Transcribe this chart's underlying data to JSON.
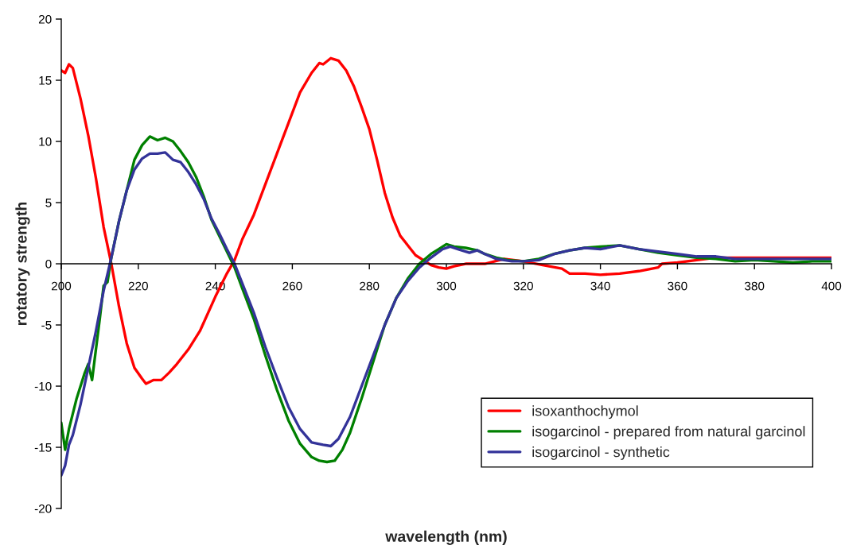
{
  "chart_data": {
    "type": "line",
    "xlabel": "wavelength (nm)",
    "ylabel": "rotatory strength",
    "xlim": [
      200,
      400
    ],
    "xticks": [
      200,
      220,
      240,
      260,
      280,
      300,
      320,
      340,
      360,
      380,
      400
    ],
    "ylim": [
      -20,
      20
    ],
    "yticks": [
      -20,
      -15,
      -10,
      -5,
      0,
      5,
      10,
      15,
      20
    ],
    "grid": false,
    "legend": "bottom right",
    "marker": "none",
    "line_style": "solid",
    "series": [
      {
        "name": "isoxanthochymol",
        "color": "#ff0000",
        "x": [
          200,
          201,
          202,
          203,
          205,
          207,
          209,
          211,
          212,
          213,
          215,
          217,
          219,
          221,
          222,
          224,
          226,
          228,
          230,
          233,
          236,
          240,
          243,
          245,
          247,
          250,
          253,
          256,
          259,
          262,
          265,
          267,
          268,
          270,
          272,
          274,
          276,
          278,
          280,
          282,
          284,
          286,
          288,
          290,
          292,
          294,
          296,
          298,
          300,
          302,
          305,
          310,
          315,
          320,
          325,
          330,
          332,
          336,
          340,
          345,
          350,
          355,
          356,
          360,
          365,
          370,
          375,
          380,
          385,
          390,
          395,
          400
        ],
        "values": [
          15.8,
          15.6,
          16.3,
          16.0,
          13.5,
          10.5,
          7,
          3,
          1.5,
          0,
          -3.5,
          -6.5,
          -8.5,
          -9.4,
          -9.8,
          -9.5,
          -9.5,
          -8.9,
          -8.2,
          -7,
          -5.5,
          -2.7,
          -0.8,
          0.3,
          2,
          4,
          6.5,
          9,
          11.5,
          14,
          15.6,
          16.4,
          16.3,
          16.8,
          16.6,
          15.8,
          14.5,
          12.8,
          11,
          8.5,
          5.8,
          3.8,
          2.3,
          1.5,
          0.7,
          0.3,
          -0.1,
          -0.3,
          -0.4,
          -0.2,
          0,
          0,
          0.4,
          0.2,
          -0.1,
          -0.4,
          -0.8,
          -0.8,
          -0.9,
          -0.8,
          -0.6,
          -0.3,
          0,
          0.1,
          0.3,
          0.5,
          0.5,
          0.5,
          0.5,
          0.5,
          0.5,
          0.5
        ]
      },
      {
        "name": "isogarcinol - prepared from natural garcinol",
        "color": "#008000",
        "x": [
          200,
          201,
          202,
          204,
          206,
          207,
          208,
          209,
          210,
          211,
          212,
          213,
          215,
          217,
          219,
          221,
          223,
          225,
          227,
          229,
          231,
          233,
          235,
          237,
          239,
          241,
          243,
          245,
          247,
          250,
          253,
          256,
          259,
          262,
          265,
          267,
          269,
          271,
          273,
          275,
          278,
          281,
          284,
          287,
          290,
          293,
          296,
          298,
          300,
          302,
          305,
          308,
          310,
          313,
          316,
          320,
          324,
          328,
          332,
          336,
          340,
          345,
          350,
          355,
          360,
          365,
          370,
          375,
          380,
          385,
          390,
          395,
          400
        ],
        "values": [
          -13,
          -15.2,
          -13.5,
          -11,
          -9,
          -8.2,
          -9.5,
          -7,
          -4.5,
          -1.8,
          -1.5,
          0.5,
          3.5,
          6,
          8.5,
          9.7,
          10.4,
          10.1,
          10.3,
          10.0,
          9.2,
          8.3,
          7.1,
          5.5,
          3.6,
          2.3,
          1,
          -0.3,
          -2,
          -4.5,
          -7.5,
          -10.3,
          -12.8,
          -14.7,
          -15.8,
          -16.1,
          -16.2,
          -16.1,
          -15.2,
          -13.8,
          -11,
          -8,
          -5,
          -2.8,
          -1.2,
          0,
          0.8,
          1.2,
          1.6,
          1.4,
          1.3,
          1.1,
          0.8,
          0.5,
          0.3,
          0.2,
          0.4,
          0.8,
          1.1,
          1.3,
          1.4,
          1.5,
          1.2,
          0.9,
          0.7,
          0.5,
          0.4,
          0.2,
          0.3,
          0.2,
          0.1,
          0.2,
          0.2
        ]
      },
      {
        "name": "isogarcinol - synthetic",
        "color": "#333399",
        "x": [
          200,
          201,
          202,
          203,
          205,
          207,
          209,
          211,
          213,
          215,
          217,
          219,
          221,
          223,
          225,
          227,
          229,
          231,
          233,
          235,
          237,
          239,
          241,
          243,
          245,
          247,
          250,
          253,
          256,
          259,
          262,
          265,
          268,
          270,
          272,
          275,
          278,
          281,
          284,
          287,
          290,
          293,
          296,
          299,
          301,
          303,
          306,
          308,
          310,
          313,
          317,
          320,
          324,
          328,
          332,
          336,
          340,
          345,
          350,
          355,
          360,
          365,
          370,
          375,
          380,
          390,
          400
        ],
        "values": [
          -17.3,
          -16.5,
          -14.8,
          -14,
          -11.5,
          -8.5,
          -5.5,
          -2.2,
          0.5,
          3.5,
          6,
          7.7,
          8.6,
          9.0,
          9.0,
          9.1,
          8.5,
          8.3,
          7.5,
          6.5,
          5.3,
          3.7,
          2.5,
          1.2,
          0,
          -1.6,
          -4,
          -6.8,
          -9.3,
          -11.7,
          -13.5,
          -14.6,
          -14.8,
          -14.9,
          -14.3,
          -12.5,
          -10,
          -7.5,
          -5,
          -2.8,
          -1.4,
          -0.3,
          0.5,
          1.2,
          1.4,
          1.2,
          0.9,
          1.1,
          0.8,
          0.4,
          0.2,
          0.2,
          0.3,
          0.8,
          1.1,
          1.3,
          1.2,
          1.5,
          1.2,
          1.0,
          0.8,
          0.6,
          0.6,
          0.4,
          0.4,
          0.4,
          0.4
        ]
      }
    ]
  }
}
